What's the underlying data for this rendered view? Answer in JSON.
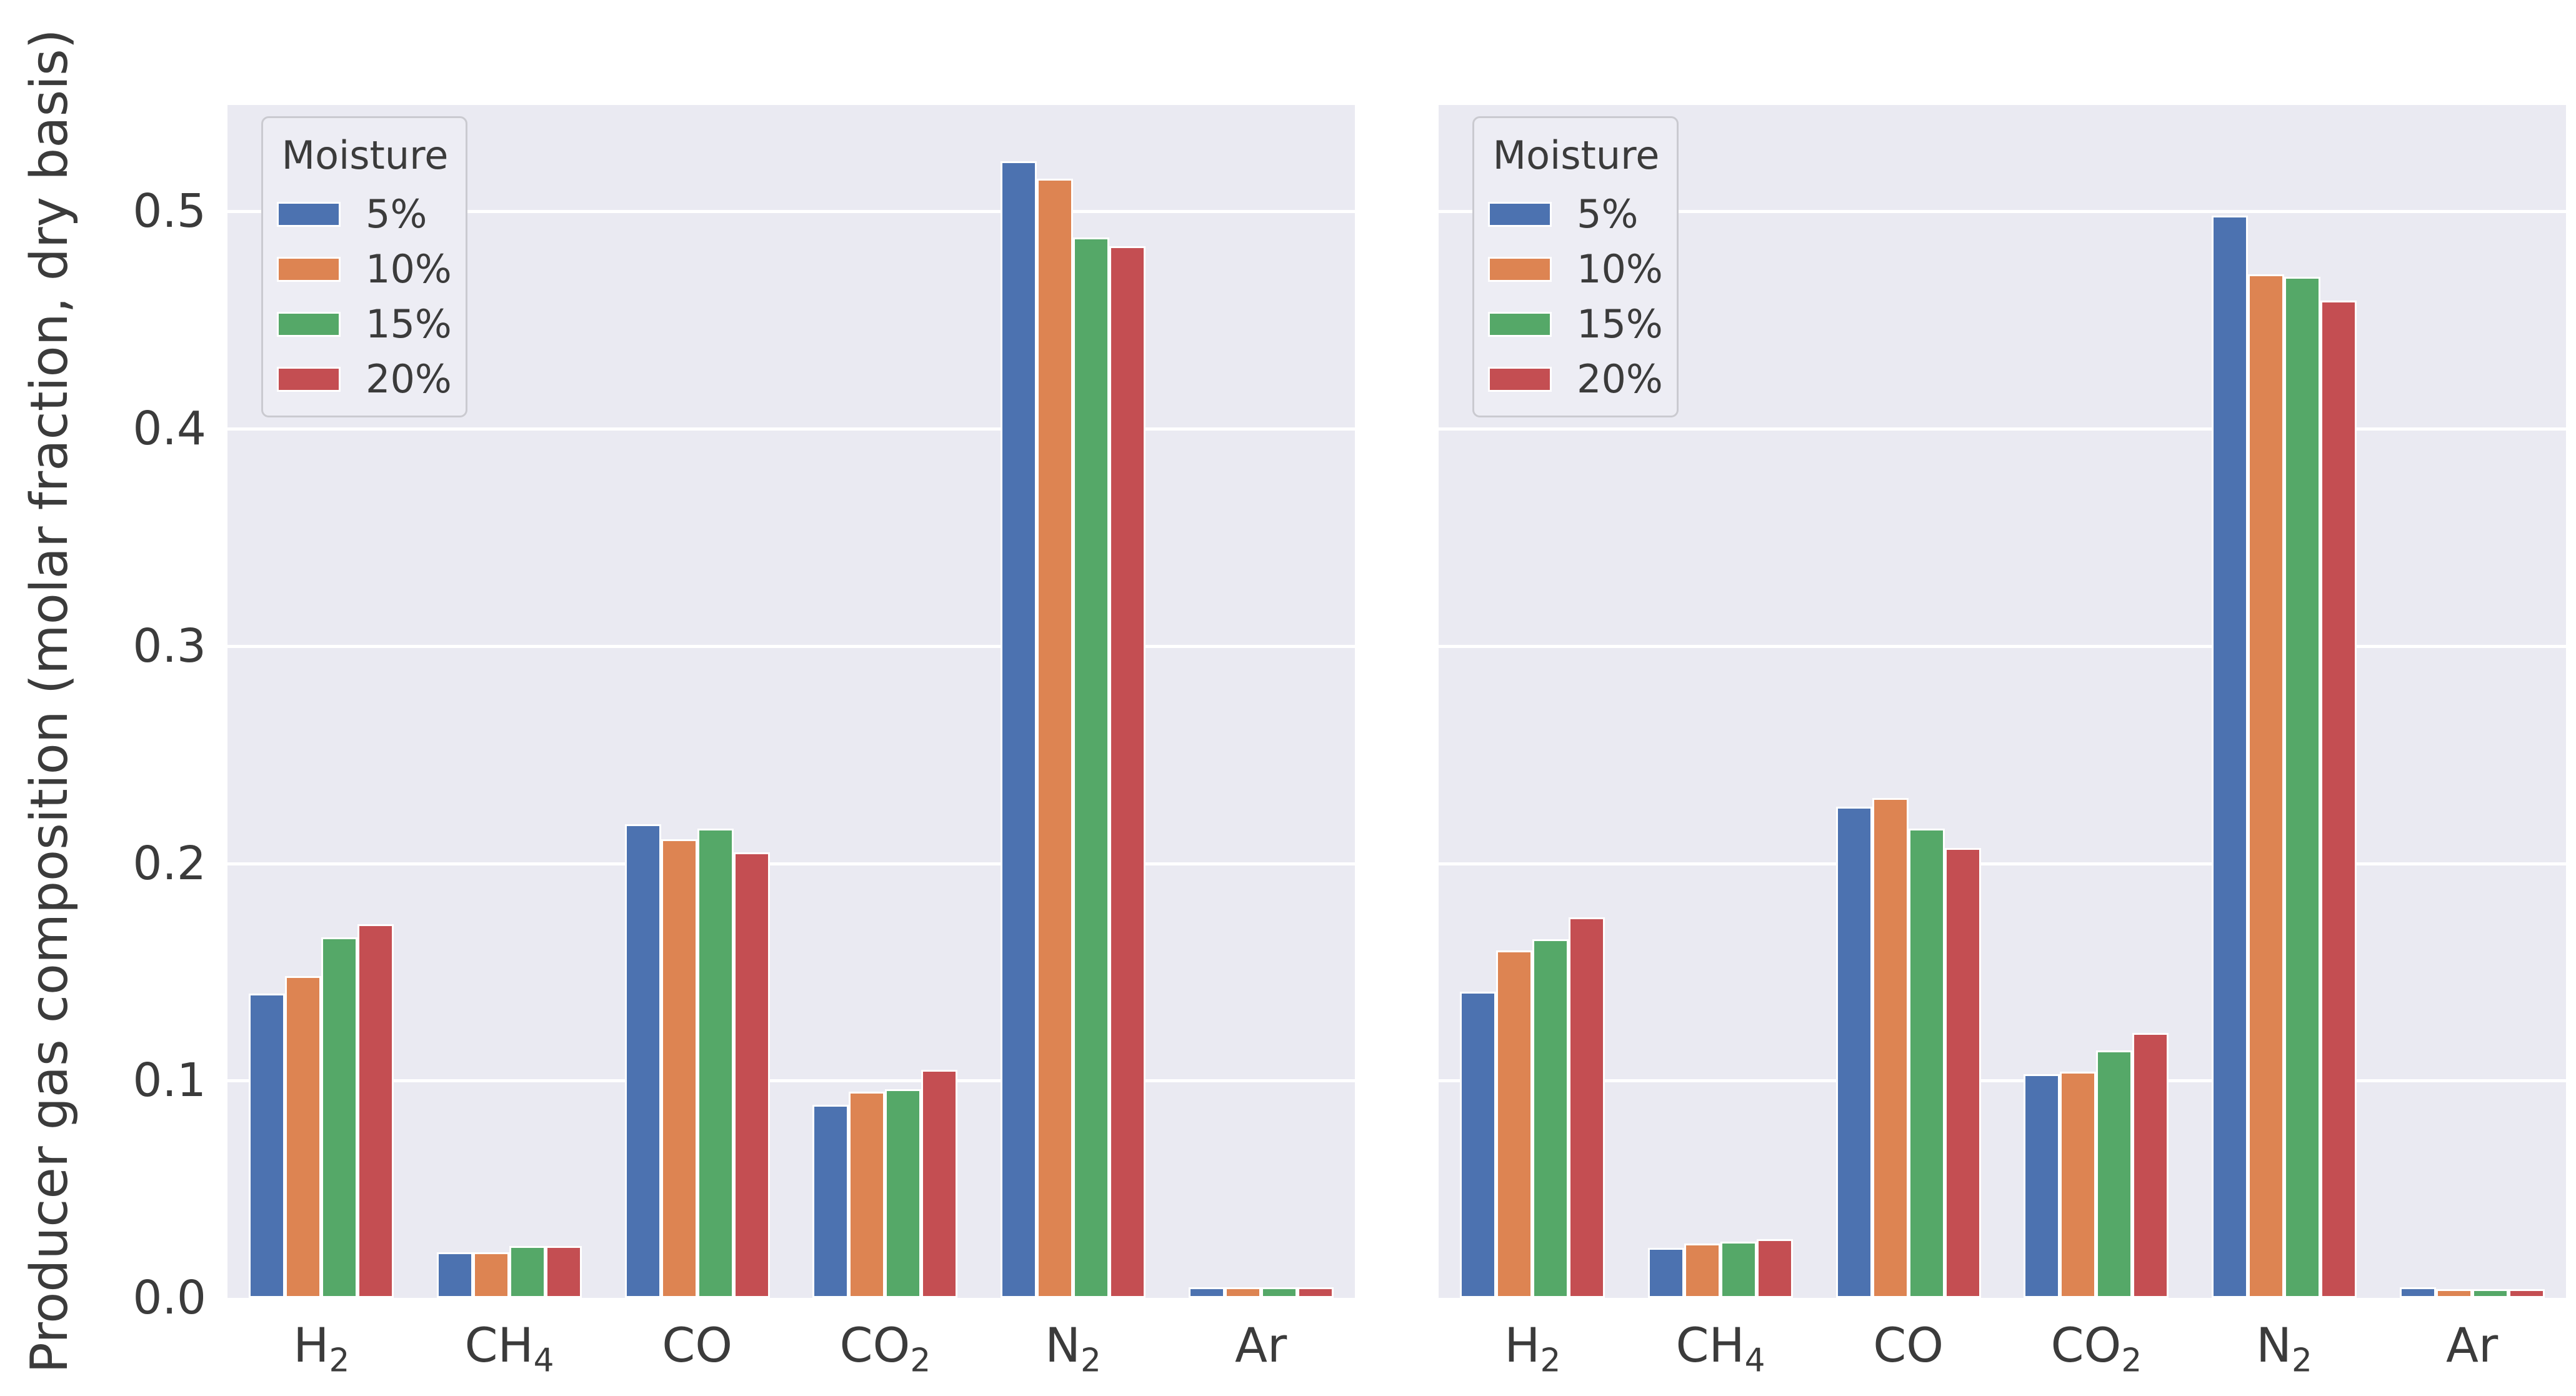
{
  "figure": {
    "ylabel": "Producer gas composition (molar fraction, dry basis)",
    "background": "#ffffff",
    "axes_background": "#eaeaf2",
    "grid_color": "#ffffff",
    "text_color": "#3b3b3b"
  },
  "legend": {
    "title": "Moisture",
    "position": "upper left",
    "entries": [
      {
        "label": "5%",
        "color": "#4c72b0"
      },
      {
        "label": "10%",
        "color": "#dd8452"
      },
      {
        "label": "15%",
        "color": "#55a868"
      },
      {
        "label": "20%",
        "color": "#c44e52"
      }
    ]
  },
  "chart_data": [
    {
      "type": "bar",
      "panel": "left",
      "title": "",
      "xlabel": "",
      "ylabel": "Producer gas composition (molar fraction, dry basis)",
      "categories": [
        "H2",
        "CH4",
        "CO",
        "CO2",
        "N2",
        "Ar"
      ],
      "category_labels": [
        {
          "main": "H",
          "sub": "2"
        },
        {
          "main": "CH",
          "sub": "4"
        },
        {
          "main": "CO",
          "sub": ""
        },
        {
          "main": "CO",
          "sub": "2"
        },
        {
          "main": "N",
          "sub": "2"
        },
        {
          "main": "Ar",
          "sub": ""
        }
      ],
      "series": [
        {
          "name": "5%",
          "color": "#4c72b0",
          "values": [
            0.14,
            0.021,
            0.218,
            0.089,
            0.523,
            0.005
          ]
        },
        {
          "name": "10%",
          "color": "#dd8452",
          "values": [
            0.148,
            0.021,
            0.211,
            0.095,
            0.515,
            0.005
          ]
        },
        {
          "name": "15%",
          "color": "#55a868",
          "values": [
            0.166,
            0.024,
            0.216,
            0.096,
            0.488,
            0.005
          ]
        },
        {
          "name": "20%",
          "color": "#c44e52",
          "values": [
            0.172,
            0.024,
            0.205,
            0.105,
            0.484,
            0.005
          ]
        }
      ],
      "ylim": [
        0,
        0.549
      ],
      "yticks": [
        "0.0",
        "0.1",
        "0.2",
        "0.3",
        "0.4",
        "0.5"
      ],
      "grid": true,
      "legend_position": "upper left"
    },
    {
      "type": "bar",
      "panel": "right",
      "title": "",
      "xlabel": "",
      "ylabel": "",
      "categories": [
        "H2",
        "CH4",
        "CO",
        "CO2",
        "N2",
        "Ar"
      ],
      "category_labels": [
        {
          "main": "H",
          "sub": "2"
        },
        {
          "main": "CH",
          "sub": "4"
        },
        {
          "main": "CO",
          "sub": ""
        },
        {
          "main": "CO",
          "sub": "2"
        },
        {
          "main": "N",
          "sub": "2"
        },
        {
          "main": "Ar",
          "sub": ""
        }
      ],
      "series": [
        {
          "name": "5%",
          "color": "#4c72b0",
          "values": [
            0.141,
            0.023,
            0.226,
            0.103,
            0.498,
            0.005
          ]
        },
        {
          "name": "10%",
          "color": "#dd8452",
          "values": [
            0.16,
            0.025,
            0.23,
            0.104,
            0.471,
            0.004
          ]
        },
        {
          "name": "15%",
          "color": "#55a868",
          "values": [
            0.165,
            0.026,
            0.216,
            0.114,
            0.47,
            0.004
          ]
        },
        {
          "name": "20%",
          "color": "#c44e52",
          "values": [
            0.175,
            0.027,
            0.207,
            0.122,
            0.459,
            0.004
          ]
        }
      ],
      "ylim": [
        0,
        0.549
      ],
      "yticks": [],
      "grid": true,
      "legend_position": "upper left"
    }
  ]
}
